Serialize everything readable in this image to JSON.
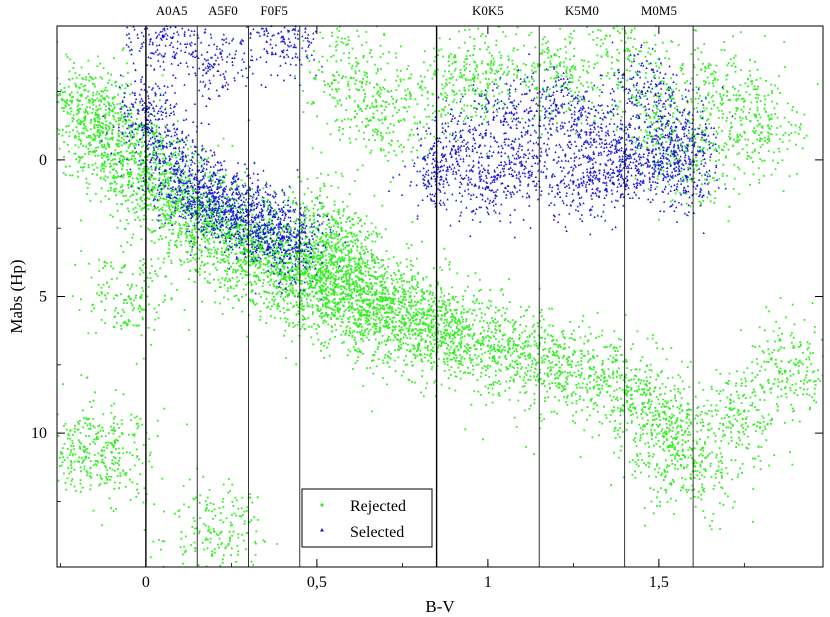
{
  "chart_data": {
    "type": "scatter",
    "title": "",
    "xlabel": "B-V",
    "ylabel": "Mabs (Hp)",
    "xlim": [
      -0.26,
      1.98
    ],
    "ylim": [
      14.9,
      -4.9
    ],
    "y_inverted": true,
    "x_ticks": [
      {
        "value": 0,
        "label": "0"
      },
      {
        "value": 0.5,
        "label": "0,5"
      },
      {
        "value": 1,
        "label": "1"
      },
      {
        "value": 1.5,
        "label": "1,5"
      }
    ],
    "y_ticks": [
      {
        "value": 0,
        "label": "0"
      },
      {
        "value": 5,
        "label": "5"
      },
      {
        "value": 10,
        "label": "10"
      }
    ],
    "grid": false,
    "legend_position": "bottom-center",
    "series": [
      {
        "name": "Rejected",
        "color": "#33ee22",
        "marker": "dot",
        "description_points": [
          [
            -0.2,
            -2.2
          ],
          [
            -0.15,
            -1.5
          ],
          [
            -0.1,
            -0.8
          ],
          [
            -0.05,
            0.0
          ],
          [
            0.0,
            0.3
          ],
          [
            0.05,
            0.9
          ],
          [
            0.1,
            1.5
          ],
          [
            0.15,
            2.0
          ],
          [
            0.2,
            2.5
          ],
          [
            0.25,
            2.9
          ],
          [
            0.3,
            3.3
          ],
          [
            0.35,
            3.6
          ],
          [
            0.4,
            3.9
          ],
          [
            0.45,
            4.2
          ],
          [
            0.5,
            4.5
          ],
          [
            0.55,
            4.8
          ],
          [
            0.6,
            5.0
          ],
          [
            0.65,
            5.3
          ],
          [
            0.7,
            5.6
          ],
          [
            0.75,
            5.8
          ],
          [
            0.8,
            6.0
          ],
          [
            0.85,
            6.2
          ],
          [
            0.9,
            6.4
          ],
          [
            1.0,
            6.8
          ],
          [
            1.1,
            7.1
          ],
          [
            1.2,
            7.5
          ],
          [
            1.3,
            7.9
          ],
          [
            1.4,
            8.5
          ],
          [
            1.5,
            9.3
          ],
          [
            1.55,
            10.2
          ],
          [
            1.6,
            11.4
          ],
          [
            1.5,
            -1.5
          ],
          [
            1.6,
            0.0
          ],
          [
            1.7,
            -2.5
          ],
          [
            1.8,
            -1.0
          ],
          [
            0.9,
            -2.5
          ],
          [
            1.0,
            -3.5
          ],
          [
            1.2,
            -3.0
          ],
          [
            1.4,
            -4.0
          ],
          [
            0.6,
            -3.0
          ],
          [
            0.7,
            -1.5
          ],
          [
            0.5,
            2.5
          ],
          [
            0.55,
            3.5
          ],
          [
            0.6,
            4.0
          ],
          [
            -0.18,
            10.5
          ],
          [
            -0.1,
            10.7
          ],
          [
            0.2,
            13.6
          ],
          [
            -0.05,
            5.0
          ],
          [
            1.75,
            9.2
          ],
          [
            1.9,
            7.5
          ]
        ]
      },
      {
        "name": "Selected",
        "color": "#1a1ad8",
        "marker": "triangle",
        "description_points": [
          [
            0.0,
            -1.8
          ],
          [
            0.05,
            -0.5
          ],
          [
            0.1,
            0.8
          ],
          [
            0.15,
            1.2
          ],
          [
            0.2,
            1.5
          ],
          [
            0.25,
            1.8
          ],
          [
            0.3,
            2.0
          ],
          [
            0.35,
            2.4
          ],
          [
            0.4,
            2.8
          ],
          [
            0.44,
            3.2
          ],
          [
            0.05,
            -4.5
          ],
          [
            0.2,
            -3.5
          ],
          [
            0.4,
            -4.5
          ],
          [
            0.85,
            0.5
          ],
          [
            0.9,
            -0.5
          ],
          [
            1.0,
            1.0
          ],
          [
            1.05,
            -1.5
          ],
          [
            1.1,
            0.2
          ],
          [
            1.2,
            -2.0
          ],
          [
            1.25,
            0.8
          ],
          [
            1.3,
            -1.0
          ],
          [
            1.35,
            0.5
          ],
          [
            1.4,
            -0.3
          ],
          [
            1.45,
            -2.5
          ],
          [
            1.5,
            0.2
          ],
          [
            1.55,
            -1.2
          ],
          [
            1.58,
            0.6
          ]
        ]
      }
    ],
    "vertical_lines": [
      0.0,
      0.15,
      0.3,
      0.45,
      0.85,
      1.15,
      1.4,
      1.6
    ],
    "spectral_bands": [
      {
        "label": "A0A5",
        "x": 0.075
      },
      {
        "label": "A5F0",
        "x": 0.225
      },
      {
        "label": "F0F5",
        "x": 0.375
      },
      {
        "label": "K0K5",
        "x": 1.0
      },
      {
        "label": "K5M0",
        "x": 1.275
      },
      {
        "label": "M0M5",
        "x": 1.5
      }
    ]
  }
}
